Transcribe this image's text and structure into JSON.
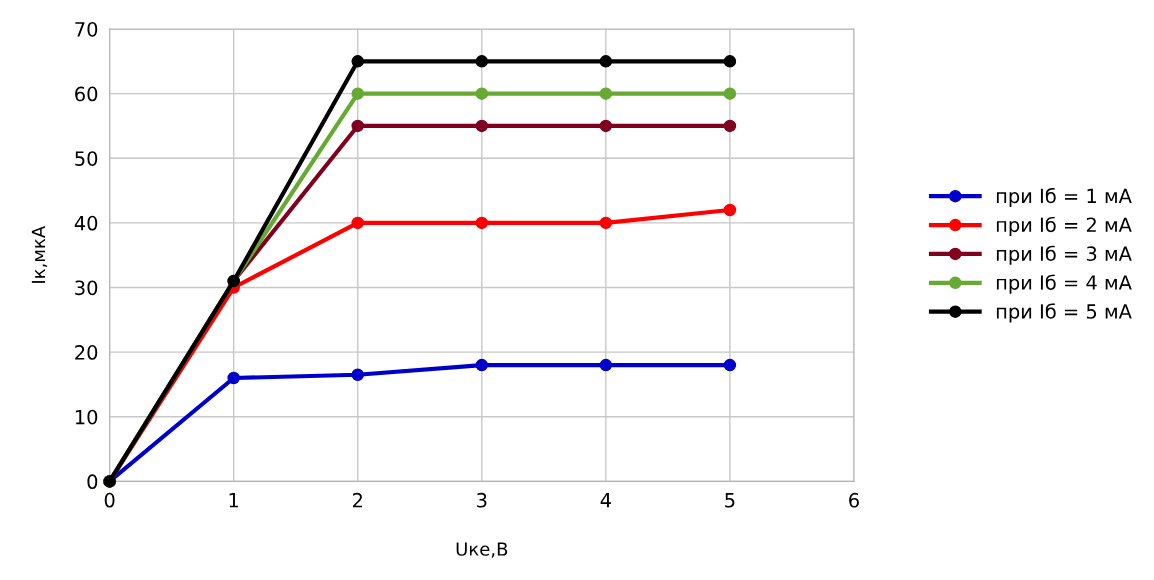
{
  "chart_data": {
    "type": "line",
    "xlabel": "Uке,В",
    "ylabel": "Iк,мкА",
    "x": [
      0,
      1,
      2,
      3,
      4,
      5
    ],
    "series": [
      {
        "name": "при Iб = 1 мА",
        "color": "#0000cc",
        "values": [
          0,
          16,
          16.5,
          18,
          18,
          18
        ]
      },
      {
        "name": "при Iб = 2 мА",
        "color": "#ff0000",
        "values": [
          0,
          30,
          40,
          40,
          40,
          42
        ]
      },
      {
        "name": "при Iб = 3 мА",
        "color": "#800020",
        "values": [
          0,
          31,
          55,
          55,
          55,
          55
        ]
      },
      {
        "name": "при Iб = 4 мА",
        "color": "#66aa33",
        "values": [
          0,
          31,
          60,
          60,
          60,
          60
        ]
      },
      {
        "name": "при Iб = 5 мА",
        "color": "#000000",
        "values": [
          0,
          31,
          65,
          65,
          65,
          65
        ]
      }
    ],
    "xlim": [
      0,
      6
    ],
    "xticks": [
      0,
      1,
      2,
      3,
      4,
      5,
      6
    ],
    "ylim": [
      0,
      70
    ],
    "yticks": [
      0,
      10,
      20,
      30,
      40,
      50,
      60,
      70
    ],
    "grid": true,
    "legend": "right",
    "marker": "circle",
    "line_style": "solid"
  }
}
